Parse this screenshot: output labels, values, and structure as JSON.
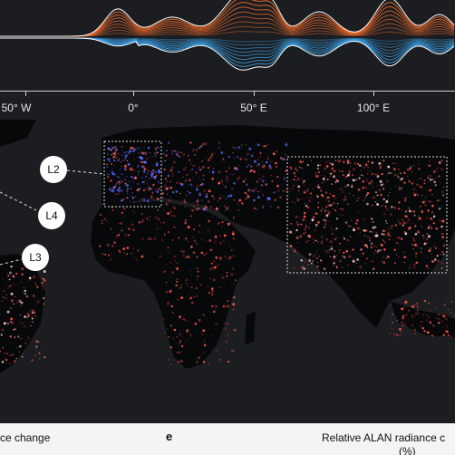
{
  "axis": {
    "ticks": [
      {
        "label": "50° W"
      },
      {
        "label": "0°"
      },
      {
        "label": "50° E"
      },
      {
        "label": "100° E"
      }
    ]
  },
  "callouts": [
    {
      "id": "L2",
      "label": "L2"
    },
    {
      "id": "L4",
      "label": "L4"
    },
    {
      "id": "L3",
      "label": "L3"
    }
  ],
  "bottom": {
    "left_caption": "ce change",
    "panel_letter": "e",
    "right_caption": "Relative ALAN radiance c",
    "right_caption_line2": "(%)"
  },
  "colors": {
    "background": "#1b1d20",
    "increase": "#f26b2a",
    "decrease": "#3aa0e6",
    "ridge": "#ffffff",
    "dim_light": "#7a2530",
    "warm_light": "#ff5a4a",
    "blue_light": "#5a6cff"
  }
}
